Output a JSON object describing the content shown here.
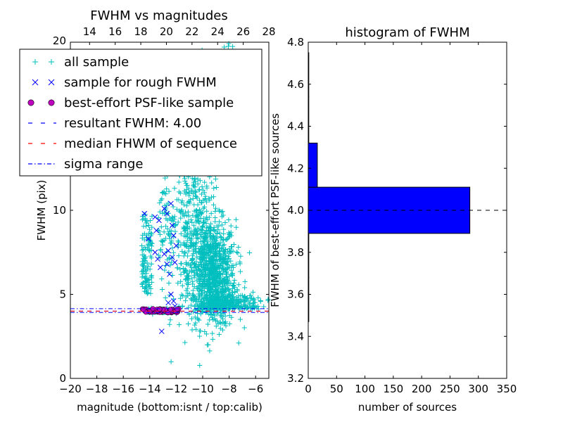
{
  "chart_data": [
    {
      "type": "scatter",
      "title": "FWHM vs magnitudes",
      "xlabel": "magnitude (bottom:isnt / top:calib)",
      "ylabel": "FWHM (pix)",
      "xlim": [
        -20,
        -5
      ],
      "ylim": [
        0,
        20
      ],
      "top_xlim": [
        12.5,
        28
      ],
      "xticks": [
        "−20",
        "−18",
        "−16",
        "−14",
        "−12",
        "−10",
        "−8",
        "−6"
      ],
      "yticks": [
        "0",
        "5",
        "10"
      ],
      "top_xticks": [
        "14",
        "16",
        "18",
        "20",
        "22",
        "24",
        "26",
        "28"
      ],
      "top_right_ytick": "20",
      "grid": false,
      "legend_position": "top-left",
      "legend": [
        {
          "label": "all sample",
          "marker": "+",
          "color": "#00bfbf"
        },
        {
          "label": "sample for rough FWHM",
          "marker": "x",
          "color": "#0000ff"
        },
        {
          "label": "best-effort PSF-like sample",
          "marker": "o",
          "color": "#bf00bf"
        },
        {
          "label": "resultant FWHM: 4.00",
          "linestyle": "dashed",
          "color": "#0000ff"
        },
        {
          "label": "median FHWM of sequence",
          "linestyle": "dashed",
          "color": "#ff0000"
        },
        {
          "label": "sigma range",
          "linestyle": "dashdot",
          "color": "#0000ff"
        }
      ],
      "series": [
        {
          "name": "sample for rough FWHM",
          "points": [
            [
              -14.4,
              9.8
            ],
            [
              -14.1,
              8.3
            ],
            [
              -13.6,
              9.6
            ],
            [
              -13.5,
              8.8
            ],
            [
              -13.3,
              9.4
            ],
            [
              -12.9,
              10.1
            ],
            [
              -12.7,
              9.8
            ],
            [
              -12.4,
              10.4
            ],
            [
              -12.3,
              9.1
            ],
            [
              -12.2,
              8.5
            ],
            [
              -13.6,
              7.5
            ],
            [
              -13.4,
              7.1
            ],
            [
              -13.2,
              6.6
            ],
            [
              -12.9,
              7.4
            ],
            [
              -12.7,
              6.8
            ],
            [
              -12.6,
              7.6
            ],
            [
              -12.3,
              7.2
            ],
            [
              -12.1,
              6.9
            ],
            [
              -12.5,
              6.2
            ],
            [
              -12.0,
              7.9
            ],
            [
              -12.4,
              5.0
            ],
            [
              -12.2,
              4.6
            ],
            [
              -13.1,
              2.8
            ],
            [
              -12.6,
              4.5
            ],
            [
              -12.1,
              4.3
            ]
          ]
        },
        {
          "name": "best-effort PSF-like sample",
          "x_range": [
            -14.6,
            -11.8
          ],
          "y_range": [
            3.9,
            4.15
          ]
        }
      ],
      "reference_lines": [
        {
          "name": "resultant FWHM: 4.00",
          "y": 4.0,
          "color": "#0000ff",
          "style": "dashed"
        },
        {
          "name": "median FHWM of sequence",
          "y": 4.0,
          "color": "#ff0000",
          "style": "dashed"
        },
        {
          "name": "sigma range",
          "y": 4.15,
          "color": "#0000ff",
          "style": "dashdot"
        },
        {
          "name": "sigma range",
          "y": 3.92,
          "color": "#0000ff",
          "style": "dashdot"
        }
      ]
    },
    {
      "type": "bar",
      "orientation": "horizontal",
      "title": "histogram of FWHM",
      "xlabel": "number of sources",
      "ylabel": "FWHM of best-effort PSF-like sources",
      "xlim": [
        0,
        350
      ],
      "ylim": [
        3.2,
        4.8
      ],
      "xticks": [
        "0",
        "50",
        "100",
        "150",
        "200",
        "250",
        "300",
        "350"
      ],
      "yticks": [
        "3.2",
        "3.4",
        "3.6",
        "3.8",
        "4.0",
        "4.2",
        "4.4",
        "4.6",
        "4.8"
      ],
      "bins": [
        {
          "y0": 3.47,
          "y1": 3.68,
          "count": 1
        },
        {
          "y0": 3.68,
          "y1": 3.89,
          "count": 1
        },
        {
          "y0": 3.89,
          "y1": 4.11,
          "count": 285
        },
        {
          "y0": 4.11,
          "y1": 4.32,
          "count": 16
        },
        {
          "y0": 4.32,
          "y1": 4.54,
          "count": 1
        },
        {
          "y0": 4.54,
          "y1": 4.75,
          "count": 1
        }
      ],
      "reference_line": {
        "y": 4.0,
        "style": "dashed",
        "color": "#000000"
      },
      "bar_color": "#0000ff"
    }
  ]
}
